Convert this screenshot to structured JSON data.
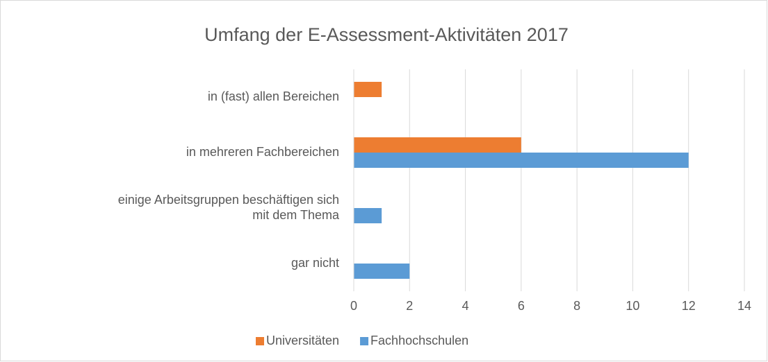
{
  "chart_data": {
    "type": "hbar",
    "title": "Umfang der E-Assessment-Aktivitäten 2017",
    "categories": [
      "in (fast) allen Bereichen",
      "in mehreren Fachbereichen",
      "einige Arbeitsgruppen beschäftigen sich mit dem Thema",
      "gar nicht"
    ],
    "series": [
      {
        "name": "Universitäten",
        "color": "#ed7d31",
        "values": [
          1,
          6,
          0,
          0
        ]
      },
      {
        "name": "Fachhochschulen",
        "color": "#5b9bd5",
        "values": [
          0,
          12,
          1,
          2
        ]
      }
    ],
    "xlim": [
      0,
      14
    ],
    "xticks": [
      0,
      2,
      4,
      6,
      8,
      10,
      12,
      14
    ],
    "grid": true,
    "legend": "bottom"
  }
}
